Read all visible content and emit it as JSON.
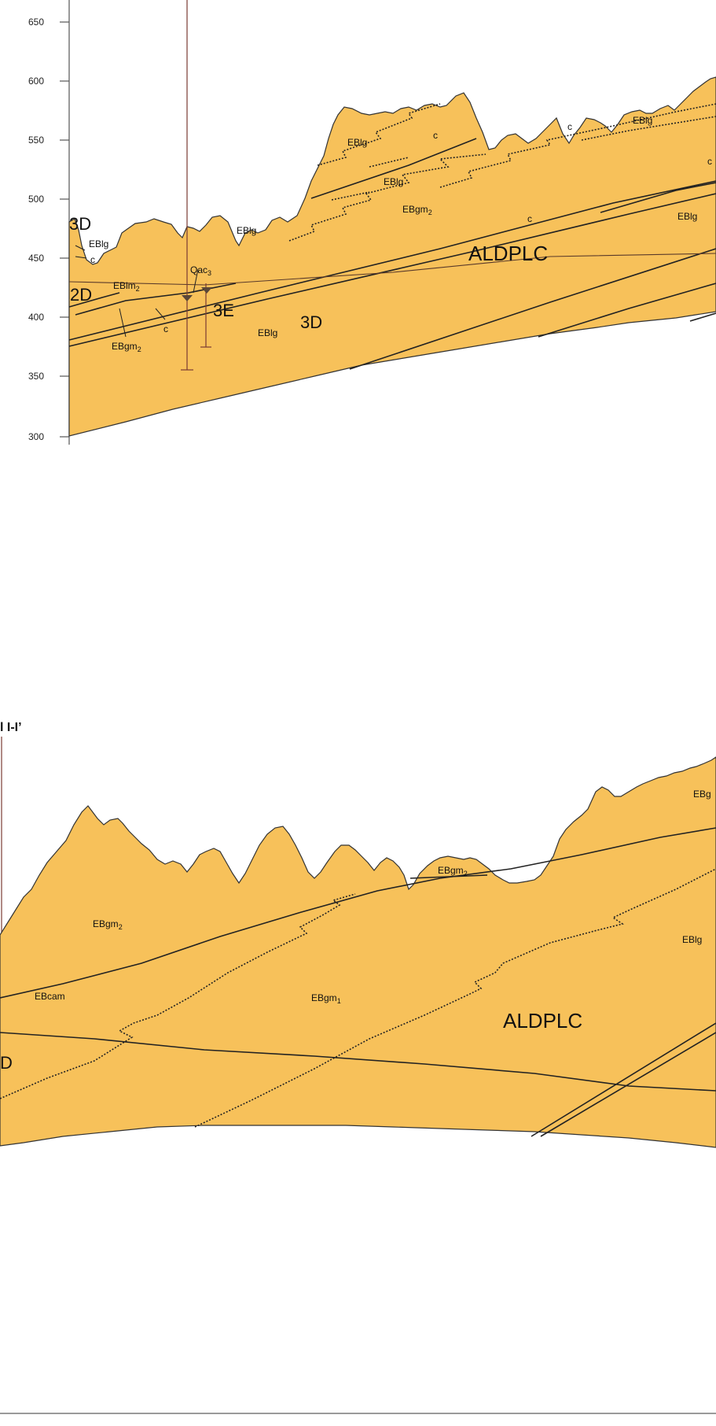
{
  "upper_section": {
    "elevation_ticks": [
      "650",
      "600",
      "550",
      "500",
      "450",
      "400",
      "350",
      "300"
    ],
    "labels": {
      "u3d_top": "3D",
      "eblg_left": "EBlg",
      "c_left": "c",
      "u2d": "2D",
      "eblm": "EBlm",
      "eblm_sub": "2",
      "qac": "Qac",
      "qac_sub": "3",
      "u3e": "3E",
      "u3d_mid": "3D",
      "eblg_low": "EBlg",
      "c_low": "c",
      "ebgm_low": "EBgm",
      "ebgm_low_sub": "2",
      "eblg_hill": "EBlg",
      "eblg_a": "EBlg",
      "c_a": "c",
      "eblg_b": "EBlg",
      "ebgm_mid": "EBgm",
      "ebgm_mid_sub": "2",
      "c_mid": "c",
      "c_right": "c",
      "eblg_right_top": "EBlg",
      "c_far": "c",
      "eblg_far": "EBlg",
      "aldplc": "ALDPLC"
    }
  },
  "lower_section": {
    "title": "l I-I’",
    "labels": {
      "ebgm_hill": "EBgm",
      "ebgm_hill_sub": "2",
      "ebgm_left": "EBgm",
      "ebgm_left_sub": "2",
      "ebcam": "EBcam",
      "ebgm1": "EBgm",
      "ebgm1_sub": "1",
      "aldplc": "ALDPLC",
      "eblg": "EBlg",
      "ebg_cut": "EBg",
      "d_cut": "D"
    }
  },
  "colors": {
    "unit_fill": "#f7c15a",
    "line": "#222222",
    "grid": "#555555",
    "borehole": "#7a3b32"
  }
}
